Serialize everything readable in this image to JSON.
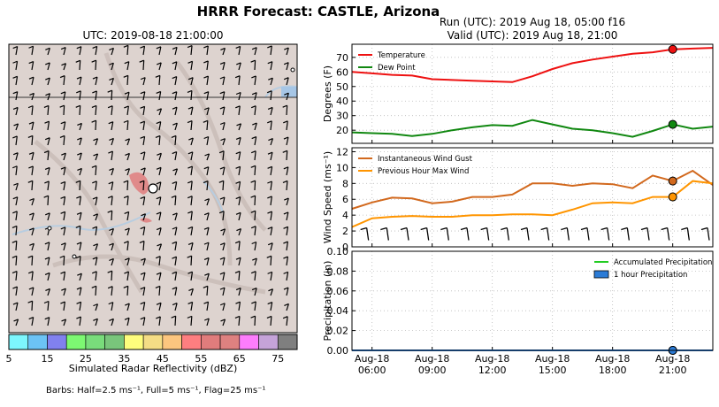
{
  "title": "HRRR Forecast: CASTLE, Arizona",
  "map": {
    "title": "UTC: 2019-08-18 21:00:00",
    "colorbar_label": "Simulated Radar Reflectivity (dBZ)",
    "colorbar_ticks": [
      "5",
      "15",
      "25",
      "35",
      "45",
      "55",
      "65",
      "75"
    ],
    "colorbar_colors": [
      "#7df6fd",
      "#6cc3f5",
      "#8181ef",
      "#7df872",
      "#79dc7b",
      "#79c57b",
      "#fefd7d",
      "#f4dd85",
      "#fcc67f",
      "#fd7e80",
      "#e07c7c",
      "#de8180",
      "#fd7dfc",
      "#c5a3d9",
      "#7f7f7f"
    ],
    "barb_note": "Barbs: Half=2.5 ms⁻¹, Full=5 ms⁻¹, Flag=25 ms⁻¹"
  },
  "run": {
    "line1": "Run (UTC): 2019 Aug 18, 05:00 f16",
    "line2": "Valid (UTC): 2019 Aug 18, 21:00"
  },
  "chart_data": [
    {
      "type": "line",
      "ylabel": "Degrees (F)",
      "ylim": [
        11,
        79
      ],
      "yticks": [
        20,
        30,
        40,
        50,
        60,
        70
      ],
      "x_hours": [
        5,
        6,
        7,
        8,
        9,
        10,
        11,
        12,
        13,
        14,
        15,
        16,
        17,
        18,
        19,
        20,
        21,
        22,
        23
      ],
      "series": [
        {
          "name": "Temperature",
          "color": "#ee1111",
          "values": [
            60,
            59,
            58,
            57.5,
            55,
            54.5,
            54,
            53.5,
            53,
            57,
            62,
            66,
            68.5,
            70.5,
            72.5,
            73.5,
            75.5,
            76,
            76.5
          ]
        },
        {
          "name": "Dew Point",
          "color": "#118811",
          "values": [
            18.5,
            18,
            17.5,
            16,
            17.5,
            20,
            22,
            23.5,
            23,
            27,
            24,
            21,
            20,
            18,
            15.5,
            19.5,
            24,
            21,
            22.5
          ]
        }
      ],
      "highlight_x": 21,
      "legend": "top-left",
      "grid": true
    },
    {
      "type": "line",
      "ylabel": "Wind Speed (ms⁻¹)",
      "ylim": [
        0,
        12.5
      ],
      "yticks": [
        0,
        2,
        4,
        6,
        8,
        10,
        12
      ],
      "x_hours": [
        5,
        6,
        7,
        8,
        9,
        10,
        11,
        12,
        13,
        14,
        15,
        16,
        17,
        18,
        19,
        20,
        21,
        22,
        23
      ],
      "series": [
        {
          "name": "Instantaneous Wind Gust",
          "color": "#d2691e",
          "values": [
            4.8,
            5.6,
            6.2,
            6.1,
            5.5,
            5.7,
            6.3,
            6.3,
            6.6,
            8.0,
            8.0,
            7.7,
            8.0,
            7.9,
            7.4,
            9.0,
            8.3,
            9.6,
            7.8
          ]
        },
        {
          "name": "Previous Hour Max Wind",
          "color": "#ff9500",
          "values": [
            2.5,
            3.6,
            3.8,
            3.9,
            3.8,
            3.8,
            4.0,
            4.0,
            4.1,
            4.1,
            4.0,
            4.7,
            5.5,
            5.6,
            5.5,
            6.3,
            6.3,
            8.3,
            8.0
          ]
        }
      ],
      "highlight_x": 21,
      "legend": "top-left",
      "grid": true
    },
    {
      "type": "line",
      "ylabel": "Precipitation (in)",
      "ylim": [
        0,
        0.1
      ],
      "yticks": [
        "0.00",
        "0.02",
        "0.04",
        "0.06",
        "0.08",
        "0.10"
      ],
      "x_hours": [
        5,
        6,
        7,
        8,
        9,
        10,
        11,
        12,
        13,
        14,
        15,
        16,
        17,
        18,
        19,
        20,
        21,
        22,
        23
      ],
      "series": [
        {
          "name": "Accumulated Precipitation",
          "color": "#22cc22",
          "values": [
            0,
            0,
            0,
            0,
            0,
            0,
            0,
            0,
            0,
            0,
            0,
            0,
            0,
            0,
            0,
            0,
            0,
            0,
            0
          ]
        },
        {
          "name": "1 hour Precipitation",
          "color": "#2b7bd6",
          "values": [
            0,
            0,
            0,
            0,
            0,
            0,
            0,
            0,
            0,
            0,
            0,
            0,
            0,
            0,
            0,
            0,
            0,
            0,
            0
          ]
        }
      ],
      "xticks": [
        {
          "hour": 6,
          "l1": "Aug-18",
          "l2": "06:00"
        },
        {
          "hour": 9,
          "l1": "Aug-18",
          "l2": "09:00"
        },
        {
          "hour": 12,
          "l1": "Aug-18",
          "l2": "12:00"
        },
        {
          "hour": 15,
          "l1": "Aug-18",
          "l2": "15:00"
        },
        {
          "hour": 18,
          "l1": "Aug-18",
          "l2": "18:00"
        },
        {
          "hour": 21,
          "l1": "Aug-18",
          "l2": "21:00"
        }
      ],
      "highlight_x": 21,
      "legend": "top-right",
      "grid": true
    }
  ]
}
